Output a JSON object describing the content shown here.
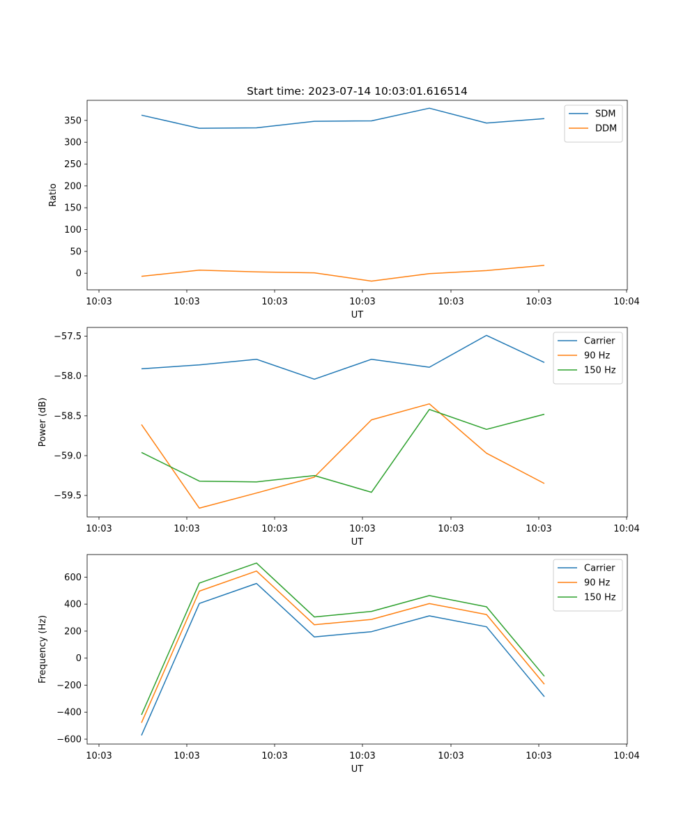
{
  "chart_data": [
    {
      "type": "line",
      "title": "Start time: 2023-07-14 10:03:01.616514",
      "xlabel": "UT",
      "ylabel": "Ratio",
      "x_tick_labels": [
        "10:03",
        "10:03",
        "10:03",
        "10:03",
        "10:03",
        "10:03",
        "10:04"
      ],
      "y_ticks": [
        0,
        50,
        100,
        150,
        200,
        250,
        300,
        350
      ],
      "ylim": [
        -38,
        396
      ],
      "legend_position": "top-right",
      "series": [
        {
          "name": "SDM",
          "color": "#1f77b4",
          "values": [
            362,
            332,
            333,
            348,
            349,
            378,
            344,
            354
          ]
        },
        {
          "name": "DDM",
          "color": "#ff7f0e",
          "values": [
            -7,
            7,
            3,
            1,
            -18,
            -1,
            6,
            18
          ]
        }
      ]
    },
    {
      "type": "line",
      "title": "",
      "xlabel": "UT",
      "ylabel": "Power (dB)",
      "x_tick_labels": [
        "10:03",
        "10:03",
        "10:03",
        "10:03",
        "10:03",
        "10:03",
        "10:04"
      ],
      "y_ticks": [
        -59.5,
        -59.0,
        -58.5,
        -58.0,
        -57.5
      ],
      "y_tick_labels": [
        "−59.5",
        "−59.0",
        "−58.5",
        "−58.0",
        "−57.5"
      ],
      "ylim": [
        -59.77,
        -57.39
      ],
      "legend_position": "top-right",
      "series": [
        {
          "name": "Carrier",
          "color": "#1f77b4",
          "values": [
            -57.91,
            -57.86,
            -57.79,
            -58.04,
            -57.79,
            -57.89,
            -57.49,
            -57.83
          ]
        },
        {
          "name": "90 Hz",
          "color": "#ff7f0e",
          "values": [
            -58.61,
            -59.66,
            -59.47,
            -59.27,
            -58.55,
            -58.35,
            -58.97,
            -59.35
          ]
        },
        {
          "name": "150 Hz",
          "color": "#2ca02c",
          "values": [
            -58.96,
            -59.32,
            -59.33,
            -59.25,
            -59.46,
            -58.42,
            -58.67,
            -58.48
          ]
        }
      ]
    },
    {
      "type": "line",
      "title": "",
      "xlabel": "UT",
      "ylabel": "Frequency (Hz)",
      "x_tick_labels": [
        "10:03",
        "10:03",
        "10:03",
        "10:03",
        "10:03",
        "10:03",
        "10:04"
      ],
      "y_ticks": [
        -600,
        -400,
        -200,
        0,
        200,
        400,
        600
      ],
      "y_tick_labels": [
        "−600",
        "−400",
        "−200",
        "0",
        "200",
        "400",
        "600"
      ],
      "ylim": [
        -636,
        767
      ],
      "legend_position": "top-right",
      "series": [
        {
          "name": "Carrier",
          "color": "#1f77b4",
          "values": [
            -572,
            405,
            553,
            157,
            196,
            313,
            232,
            -285
          ]
        },
        {
          "name": "90 Hz",
          "color": "#ff7f0e",
          "values": [
            -478,
            496,
            645,
            247,
            287,
            404,
            323,
            -193
          ]
        },
        {
          "name": "150 Hz",
          "color": "#2ca02c",
          "values": [
            -420,
            556,
            704,
            305,
            346,
            463,
            380,
            -134
          ]
        }
      ]
    }
  ]
}
